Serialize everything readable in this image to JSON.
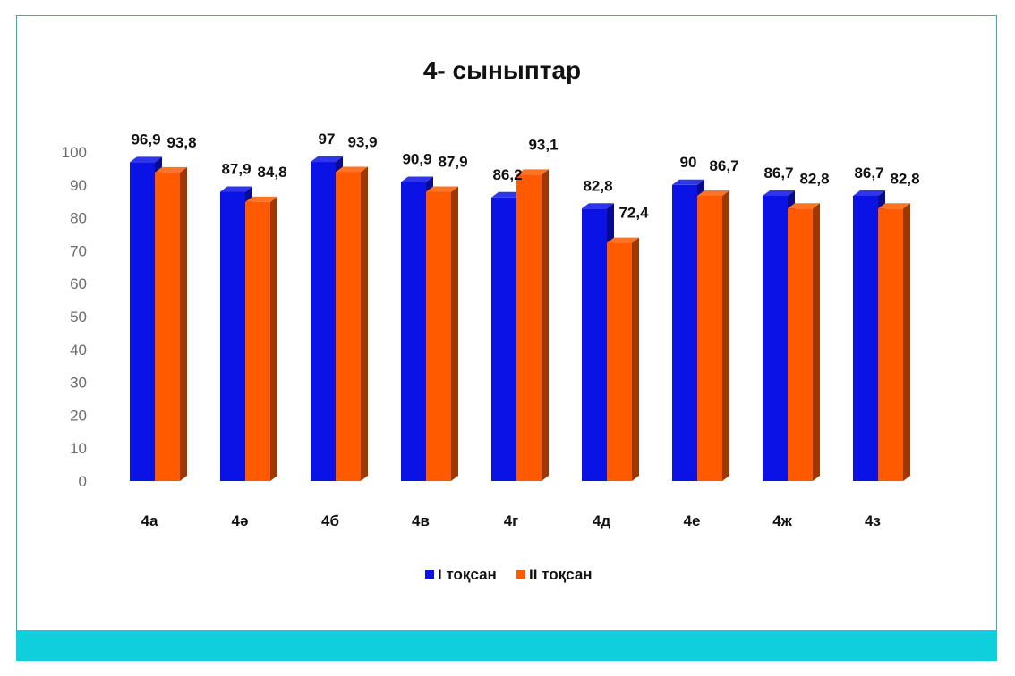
{
  "chart_data": {
    "type": "bar",
    "title": "4- сыныптар",
    "categories": [
      "4а",
      "4ә",
      "4б",
      "4в",
      "4г",
      "4д",
      "4е",
      "4ж",
      "4з"
    ],
    "series": [
      {
        "name": "I тоқсан",
        "color": "#0a12e6",
        "values": [
          96.9,
          87.9,
          97,
          90.9,
          86.2,
          82.8,
          90,
          86.7,
          86.7
        ],
        "labels": [
          "96,9",
          "87,9",
          "97",
          "90,9",
          "86,2",
          "82,8",
          "90",
          "86,7",
          "86,7"
        ]
      },
      {
        "name": "II тоқсан",
        "color": "#ff5a00",
        "values": [
          93.8,
          84.8,
          93.9,
          87.9,
          93.1,
          72.4,
          86.7,
          82.8,
          82.8
        ],
        "labels": [
          "93,8",
          "84,8",
          "93,9",
          "87,9",
          "93,1",
          "72,4",
          "86,7",
          "82,8",
          "82,8"
        ]
      }
    ],
    "yticks": [
      "0",
      "10",
      "20",
      "30",
      "40",
      "50",
      "60",
      "70",
      "80",
      "90",
      "100"
    ],
    "ylim": [
      0,
      100
    ],
    "grid": false,
    "legend_position": "bottom",
    "style": "3d-clustered-column"
  },
  "colors": {
    "frame_border": "#1fb7c8",
    "footer_bar": "#10cfdc"
  }
}
